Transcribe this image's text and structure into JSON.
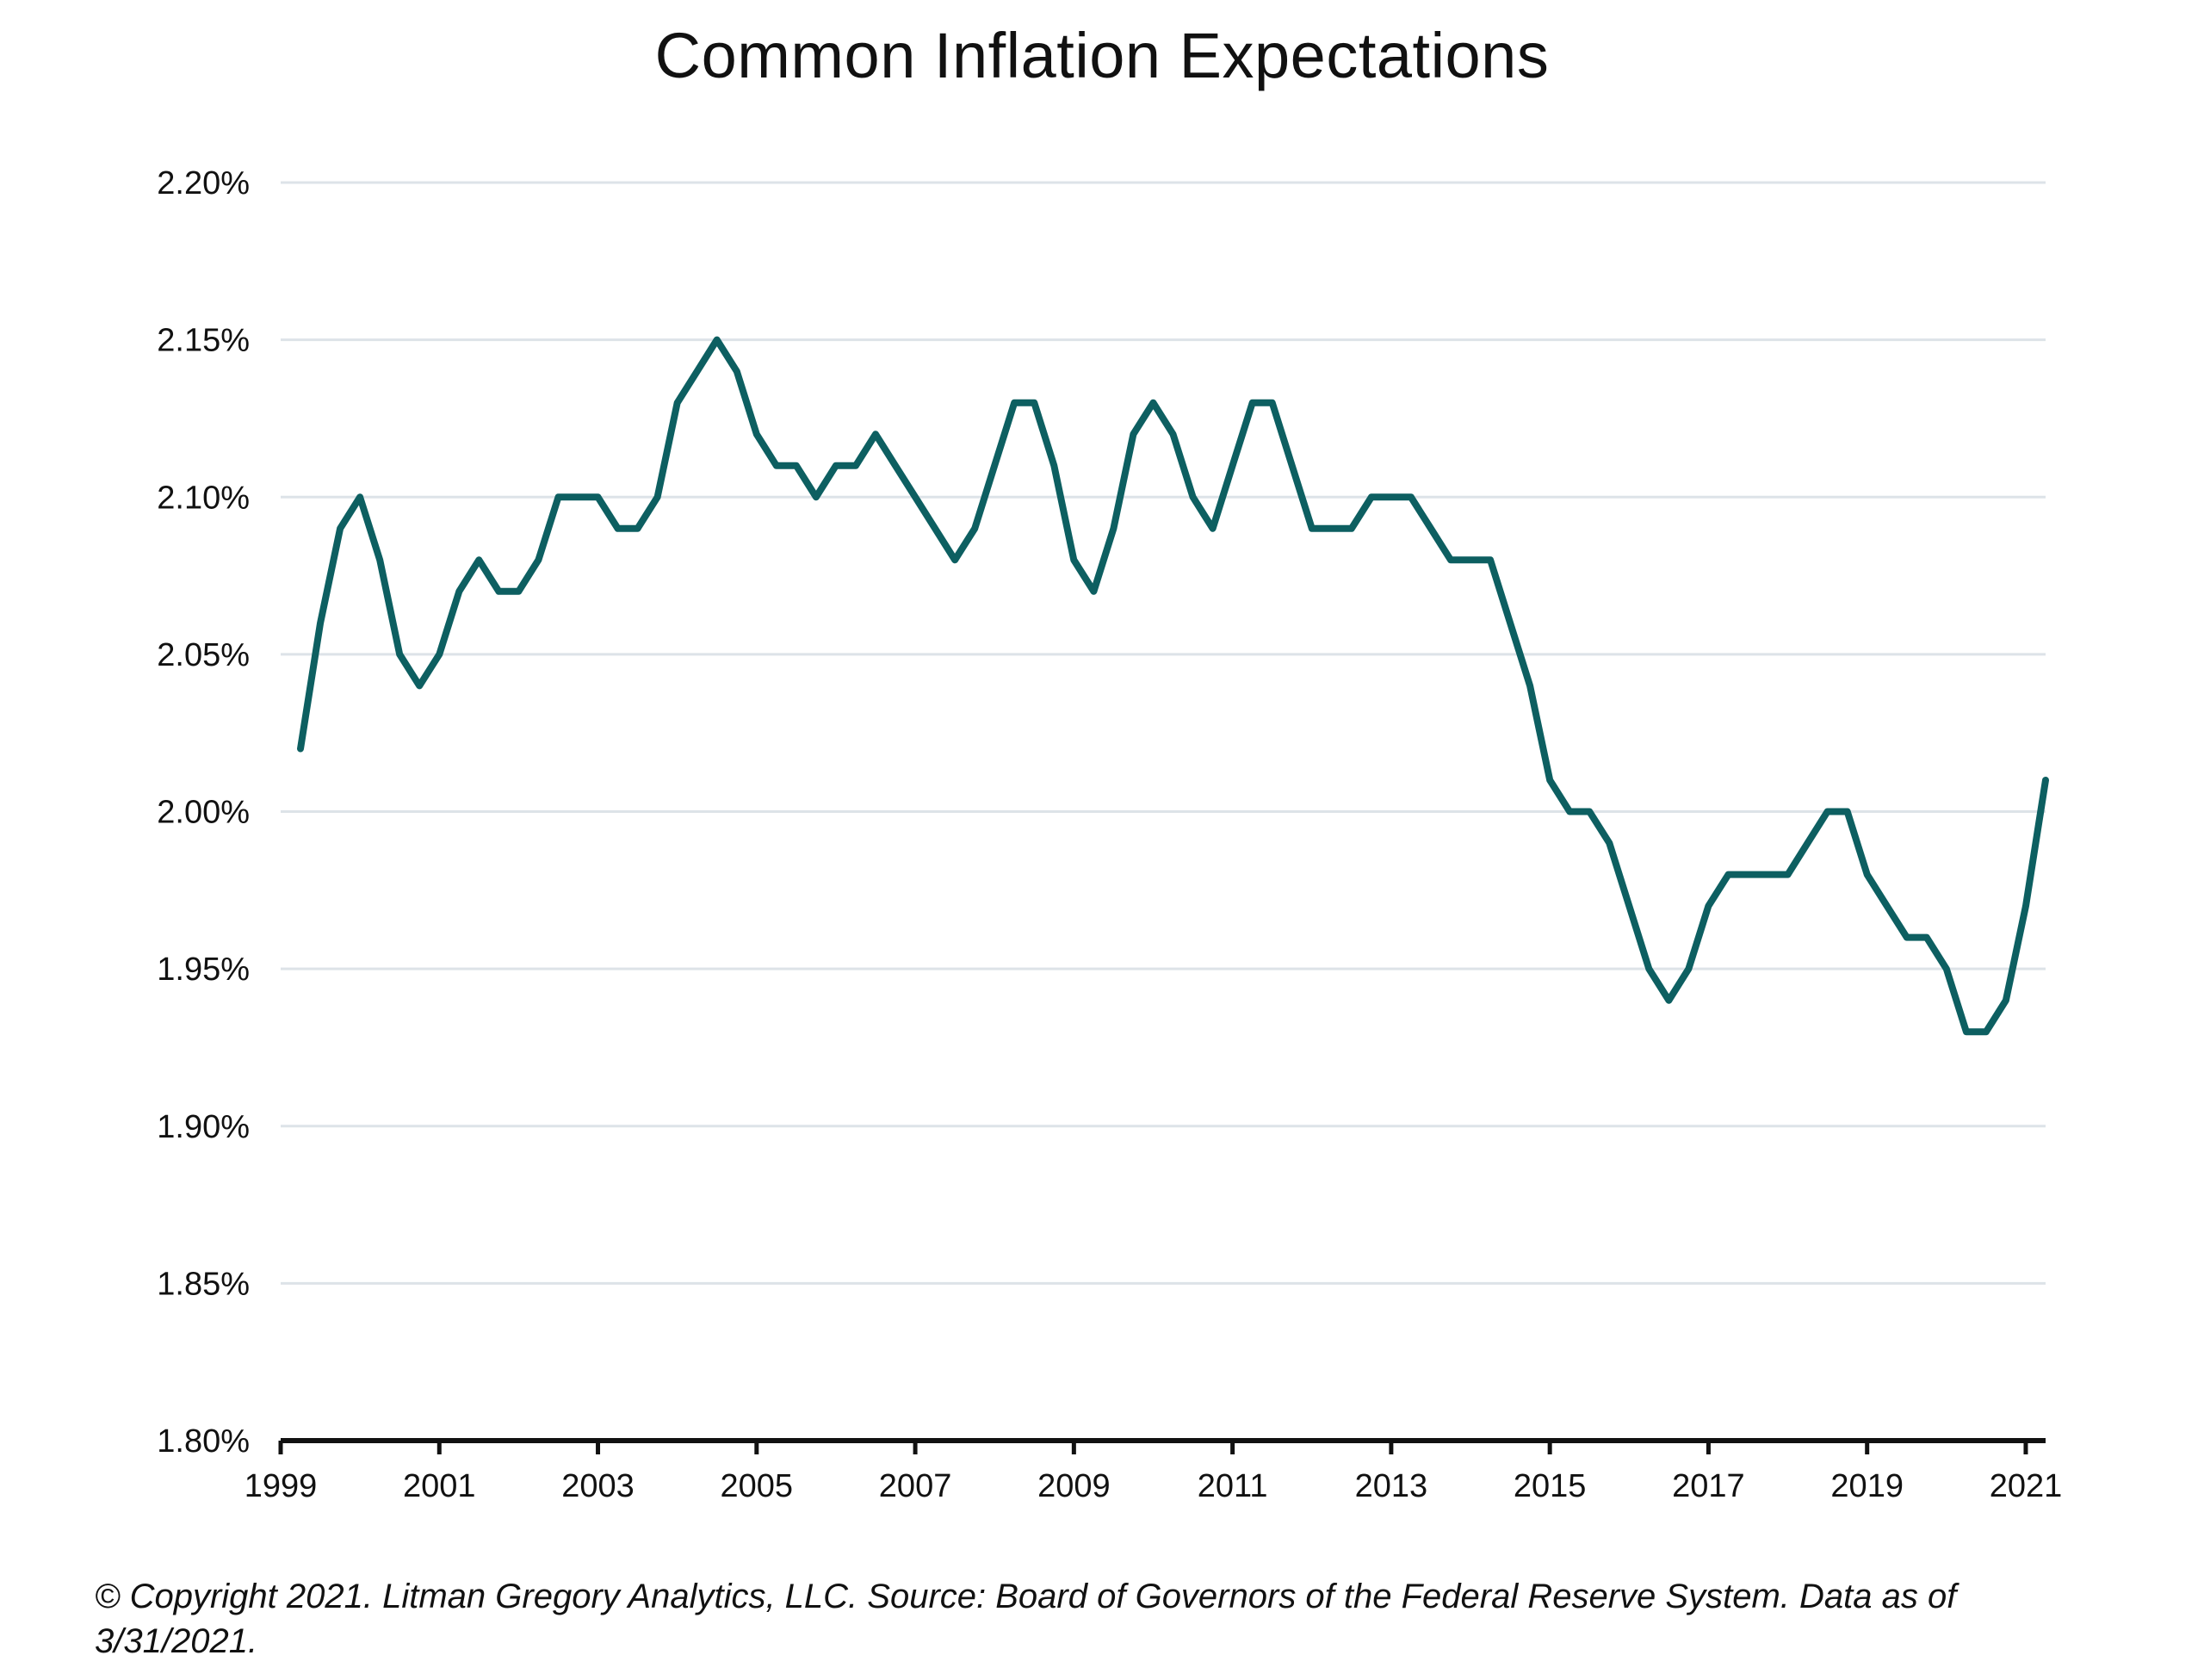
{
  "chart_data": {
    "type": "line",
    "title": "Common Inflation Expectations",
    "xlabel": "",
    "ylabel": "",
    "ylim": [
      1.8,
      2.2
    ],
    "yticks": [
      1.8,
      1.85,
      1.9,
      1.95,
      2.0,
      2.05,
      2.1,
      2.15,
      2.2
    ],
    "ytick_labels": [
      "1.80%",
      "1.85%",
      "1.90%",
      "1.95%",
      "2.00%",
      "2.05%",
      "2.10%",
      "2.15%",
      "2.20%"
    ],
    "xlim": [
      1999,
      2021.25
    ],
    "xticks": [
      1999,
      2001,
      2003,
      2005,
      2007,
      2009,
      2011,
      2013,
      2015,
      2017,
      2019,
      2021
    ],
    "xtick_labels": [
      "1999",
      "2001",
      "2003",
      "2005",
      "2007",
      "2009",
      "2011",
      "2013",
      "2015",
      "2017",
      "2019",
      "2021"
    ],
    "grid": "horizontal",
    "line_color": "#0d5f61",
    "grid_color": "#dde3e8",
    "series": [
      {
        "x": [
          1999.25,
          1999.5,
          1999.75,
          2000.0,
          2000.25,
          2000.5,
          2000.75,
          2001.0,
          2001.25,
          2001.5,
          2001.75,
          2002.0,
          2002.25,
          2002.5,
          2002.75,
          2003.0,
          2003.25,
          2003.5,
          2003.75,
          2004.0,
          2004.25,
          2004.5,
          2004.75,
          2005.0,
          2005.25,
          2005.5,
          2005.75,
          2006.0,
          2006.25,
          2006.5,
          2006.75,
          2007.0,
          2007.25,
          2007.5,
          2007.75,
          2008.0,
          2008.25,
          2008.5,
          2008.75,
          2009.0,
          2009.25,
          2009.5,
          2009.75,
          2010.0,
          2010.25,
          2010.5,
          2010.75,
          2011.0,
          2011.25,
          2011.5,
          2011.75,
          2012.0,
          2012.25,
          2012.5,
          2012.75,
          2013.0,
          2013.25,
          2013.5,
          2013.75,
          2014.0,
          2014.25,
          2014.5,
          2014.75,
          2015.0,
          2015.25,
          2015.5,
          2015.75,
          2016.0,
          2016.25,
          2016.5,
          2016.75,
          2017.0,
          2017.25,
          2017.5,
          2017.75,
          2018.0,
          2018.25,
          2018.5,
          2018.75,
          2019.0,
          2019.25,
          2019.5,
          2019.75,
          2020.0,
          2020.25,
          2020.5,
          2020.75,
          2021.0,
          2021.25
        ],
        "values": [
          2.02,
          2.06,
          2.09,
          2.1,
          2.08,
          2.05,
          2.04,
          2.05,
          2.07,
          2.08,
          2.07,
          2.07,
          2.08,
          2.1,
          2.1,
          2.1,
          2.09,
          2.09,
          2.1,
          2.13,
          2.14,
          2.15,
          2.14,
          2.12,
          2.11,
          2.11,
          2.1,
          2.11,
          2.11,
          2.12,
          2.11,
          2.1,
          2.09,
          2.08,
          2.09,
          2.11,
          2.13,
          2.13,
          2.11,
          2.08,
          2.07,
          2.09,
          2.12,
          2.13,
          2.12,
          2.1,
          2.09,
          2.11,
          2.13,
          2.13,
          2.11,
          2.09,
          2.09,
          2.09,
          2.1,
          2.1,
          2.1,
          2.09,
          2.08,
          2.08,
          2.08,
          2.06,
          2.04,
          2.01,
          2.0,
          2.0,
          1.99,
          1.97,
          1.95,
          1.94,
          1.95,
          1.97,
          1.98,
          1.98,
          1.98,
          1.98,
          1.99,
          2.0,
          2.0,
          1.98,
          1.97,
          1.96,
          1.96,
          1.95,
          1.93,
          1.93,
          1.94,
          1.97,
          2.01
        ]
      }
    ]
  },
  "footnote": "© Copyright 2021. Litman Gregory Analytics, LLC. Source: Board of Governors of the Federal Reserve System. Data as of 3/31/2021."
}
